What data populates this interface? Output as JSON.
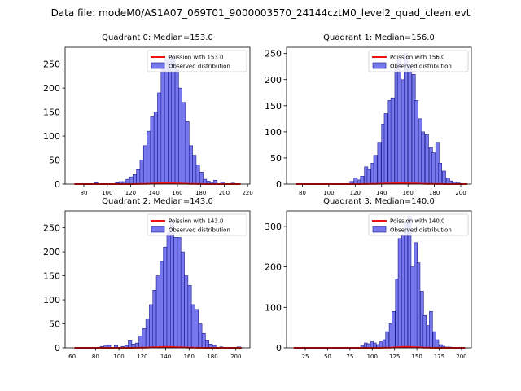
{
  "figure_title": "Data file: modeM0/AS1A07_069T01_9000003570_24144cztM0_level2_quad_clean.evt",
  "colors": {
    "bar_fill": "#7777ee",
    "bar_edge": "#1a1a8c",
    "curve": "#ee1111",
    "axis": "#000000"
  },
  "chart_data": [
    {
      "type": "bar",
      "title": "Quadrant 0: Median=153.0",
      "legend": [
        "Poission with 153.0",
        "Observed distribution"
      ],
      "legend_position": "top-right",
      "xlim": [
        64,
        222
      ],
      "ylim": [
        0,
        285
      ],
      "xticks": [
        80,
        100,
        120,
        140,
        160,
        180,
        200,
        220
      ],
      "yticks": [
        0,
        50,
        100,
        150,
        200,
        250
      ],
      "bin_width": 3,
      "bins": [
        [
          89,
          3
        ],
        [
          107,
          3
        ],
        [
          110,
          5
        ],
        [
          113,
          5
        ],
        [
          116,
          10
        ],
        [
          119,
          15
        ],
        [
          122,
          20
        ],
        [
          125,
          30
        ],
        [
          128,
          50
        ],
        [
          131,
          80
        ],
        [
          134,
          110
        ],
        [
          137,
          140
        ],
        [
          140,
          150
        ],
        [
          143,
          190
        ],
        [
          146,
          245
        ],
        [
          149,
          260
        ],
        [
          152,
          268
        ],
        [
          155,
          265
        ],
        [
          158,
          240
        ],
        [
          161,
          200
        ],
        [
          164,
          170
        ],
        [
          167,
          130
        ],
        [
          170,
          80
        ],
        [
          173,
          60
        ],
        [
          176,
          40
        ],
        [
          179,
          25
        ],
        [
          182,
          10
        ],
        [
          185,
          6
        ],
        [
          188,
          4
        ],
        [
          191,
          8
        ],
        [
          197,
          4
        ],
        [
          206,
          2
        ]
      ],
      "curve": {
        "mean": 153,
        "x": [
          72,
          214
        ]
      }
    },
    {
      "type": "bar",
      "title": "Quadrant 1: Median=156.0",
      "legend": [
        "Poission with 156.0",
        "Observed distribution"
      ],
      "legend_position": "top-right",
      "xlim": [
        68,
        208
      ],
      "ylim": [
        0,
        262
      ],
      "xticks": [
        80,
        100,
        120,
        140,
        160,
        180,
        200
      ],
      "yticks": [
        0,
        50,
        100,
        150,
        200,
        250
      ],
      "bin_width": 2.6,
      "bins": [
        [
          116,
          5
        ],
        [
          119,
          12
        ],
        [
          122,
          8
        ],
        [
          124,
          15
        ],
        [
          127,
          33
        ],
        [
          129,
          28
        ],
        [
          132,
          40
        ],
        [
          134,
          55
        ],
        [
          137,
          80
        ],
        [
          140,
          115
        ],
        [
          142,
          135
        ],
        [
          145,
          160
        ],
        [
          147,
          165
        ],
        [
          150,
          220
        ],
        [
          152,
          240
        ],
        [
          155,
          200
        ],
        [
          157,
          250
        ],
        [
          160,
          230
        ],
        [
          163,
          210
        ],
        [
          165,
          160
        ],
        [
          168,
          125
        ],
        [
          170,
          100
        ],
        [
          173,
          95
        ],
        [
          176,
          70
        ],
        [
          178,
          60
        ],
        [
          181,
          80
        ],
        [
          183,
          40
        ],
        [
          186,
          25
        ],
        [
          189,
          12
        ],
        [
          191,
          6
        ],
        [
          194,
          4
        ],
        [
          197,
          2
        ]
      ],
      "curve": {
        "mean": 156,
        "x": [
          75,
          205
        ]
      }
    },
    {
      "type": "bar",
      "title": "Quadrant 2: Median=143.0",
      "legend": [
        "Poission with 143.0",
        "Observed distribution"
      ],
      "legend_position": "top-right",
      "xlim": [
        54,
        212
      ],
      "ylim": [
        0,
        285
      ],
      "xticks": [
        60,
        80,
        100,
        120,
        140,
        160,
        180,
        200
      ],
      "yticks": [
        0,
        50,
        100,
        150,
        200,
        250
      ],
      "bin_width": 3,
      "bins": [
        [
          84,
          3
        ],
        [
          87,
          4
        ],
        [
          90,
          5
        ],
        [
          96,
          5
        ],
        [
          102,
          3
        ],
        [
          105,
          5
        ],
        [
          108,
          15
        ],
        [
          111,
          8
        ],
        [
          114,
          10
        ],
        [
          117,
          25
        ],
        [
          120,
          40
        ],
        [
          123,
          60
        ],
        [
          126,
          90
        ],
        [
          129,
          120
        ],
        [
          132,
          150
        ],
        [
          135,
          180
        ],
        [
          138,
          210
        ],
        [
          141,
          240
        ],
        [
          144,
          265
        ],
        [
          147,
          230
        ],
        [
          150,
          230
        ],
        [
          153,
          200
        ],
        [
          156,
          150
        ],
        [
          159,
          130
        ],
        [
          162,
          90
        ],
        [
          165,
          80
        ],
        [
          168,
          50
        ],
        [
          171,
          30
        ],
        [
          174,
          15
        ],
        [
          177,
          8
        ],
        [
          180,
          5
        ],
        [
          186,
          2
        ],
        [
          201,
          2
        ]
      ],
      "curve": {
        "mean": 143,
        "x": [
          62,
          205
        ]
      }
    },
    {
      "type": "bar",
      "title": "Quadrant 3: Median=140.0",
      "legend": [
        "Poission with 140.0",
        "Observed distribution"
      ],
      "legend_position": "top-right",
      "xlim": [
        4,
        211
      ],
      "ylim": [
        0,
        338
      ],
      "xticks": [
        25,
        50,
        75,
        100,
        125,
        150,
        175,
        200
      ],
      "yticks": [
        0,
        100,
        200,
        300
      ],
      "bin_width": 3.5,
      "bins": [
        [
          87,
          5
        ],
        [
          91,
          12
        ],
        [
          94,
          10
        ],
        [
          98,
          15
        ],
        [
          101,
          12
        ],
        [
          105,
          8
        ],
        [
          108,
          15
        ],
        [
          112,
          20
        ],
        [
          115,
          40
        ],
        [
          119,
          60
        ],
        [
          122,
          90
        ],
        [
          126,
          170
        ],
        [
          129,
          270
        ],
        [
          133,
          280
        ],
        [
          136,
          310
        ],
        [
          140,
          325
        ],
        [
          143,
          200
        ],
        [
          147,
          260
        ],
        [
          150,
          210
        ],
        [
          154,
          140
        ],
        [
          157,
          80
        ],
        [
          161,
          55
        ],
        [
          164,
          90
        ],
        [
          168,
          40
        ],
        [
          171,
          20
        ],
        [
          175,
          8
        ],
        [
          178,
          4
        ],
        [
          182,
          2
        ],
        [
          185,
          2
        ]
      ],
      "curve": {
        "mean": 140,
        "x": [
          12,
          204
        ]
      }
    }
  ]
}
